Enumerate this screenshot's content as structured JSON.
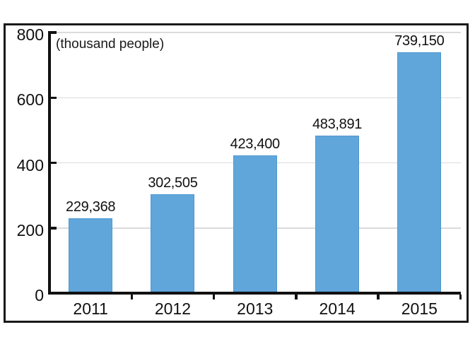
{
  "chart_data": {
    "type": "bar",
    "title": "",
    "unit_label": "(thousand people)",
    "categories": [
      "2011",
      "2012",
      "2013",
      "2014",
      "2015"
    ],
    "values": [
      229368,
      302505,
      423400,
      483891,
      739150
    ],
    "value_labels": [
      "229,368",
      "302,505",
      "423,400",
      "483,891",
      "739,150"
    ],
    "values_unit": "people",
    "y_axis": {
      "min": 0,
      "max": 800,
      "unit": "thousand people",
      "ticks": [
        0,
        200,
        400,
        600,
        800
      ],
      "tick_labels": [
        "0",
        "200",
        "400",
        "600",
        "800"
      ]
    },
    "x_axis": {
      "label": ""
    },
    "legend": "none",
    "grid": "horizontal",
    "colors": {
      "bar": "#61a6db",
      "bar_edge": "#4f98d0",
      "gridline": "#dbdbdb",
      "axis": "#111111",
      "text": "#111111",
      "frame": "#1a1a1a",
      "background": "#ffffff"
    }
  }
}
